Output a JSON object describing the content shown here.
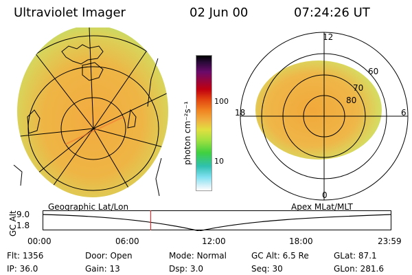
{
  "header": {
    "title": "Ultraviolet Imager",
    "date": "02 Jun 00",
    "time": "07:24:26 UT"
  },
  "colorbar": {
    "unit_label": "photon cm⁻²s⁻¹",
    "ticks": [
      "100",
      "10"
    ],
    "scale": "log"
  },
  "polar_plot": {
    "lat_labels": [
      "80",
      "70",
      "60"
    ],
    "mlt_labels": {
      "top": "12",
      "bottom": "0",
      "left": "18",
      "right": "6"
    }
  },
  "map_labels": {
    "left": "Geographic Lat/Lon",
    "right": "Apex MLat/MLT"
  },
  "timeline": {
    "axis_label": "GC Alt",
    "y_ticks": [
      "9.0",
      "1.8"
    ],
    "x_ticks": [
      "00:00",
      "06:00",
      "12:00",
      "18:00",
      "23:59"
    ],
    "current_time_fraction": 0.31
  },
  "status": {
    "row1": [
      {
        "k": "Flt:",
        "v": "1356"
      },
      {
        "k": "Door:",
        "v": "Open"
      },
      {
        "k": "Mode:",
        "v": "Normal"
      },
      {
        "k": "GC Alt:",
        "v": "6.5 Re"
      },
      {
        "k": "GLat:",
        "v": "87.1"
      }
    ],
    "row2": [
      {
        "k": "IP:",
        "v": "36.0"
      },
      {
        "k": "Gain:",
        "v": "13"
      },
      {
        "k": "Dsp:",
        "v": "3.0"
      },
      {
        "k": "Seq:",
        "v": "30"
      },
      {
        "k": "GLon:",
        "v": "281.6"
      }
    ]
  },
  "colors": {
    "aurora_main": "#f0a830",
    "aurora_low": "#d8e060",
    "marker": "#e03030"
  }
}
